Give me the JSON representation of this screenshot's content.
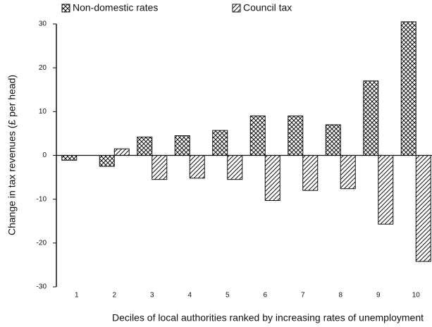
{
  "chart_data": {
    "type": "bar",
    "y_label": "Change in tax revenues (£ per head)",
    "x_label": "Deciles of local authorities ranked by increasing rates of unemployment",
    "categories": [
      "1",
      "2",
      "3",
      "4",
      "5",
      "6",
      "7",
      "8",
      "9",
      "10"
    ],
    "series": [
      {
        "name": "Non-domestic rates",
        "pattern": "crosshatch",
        "color": "#111111",
        "values": [
          -1.1,
          -2.5,
          4.2,
          4.5,
          5.7,
          9,
          9,
          7,
          17,
          30.5
        ]
      },
      {
        "name": "Council tax",
        "pattern": "diagonal",
        "color": "#111111",
        "values": [
          0,
          1.5,
          -5.5,
          -5.2,
          -5.5,
          -10.3,
          -8,
          -7.6,
          -15.7,
          -24.2
        ]
      }
    ],
    "ylim": [
      -30,
      30
    ],
    "yticks": [
      -30,
      -20,
      -10,
      0,
      10,
      20,
      30
    ],
    "grid": false
  }
}
